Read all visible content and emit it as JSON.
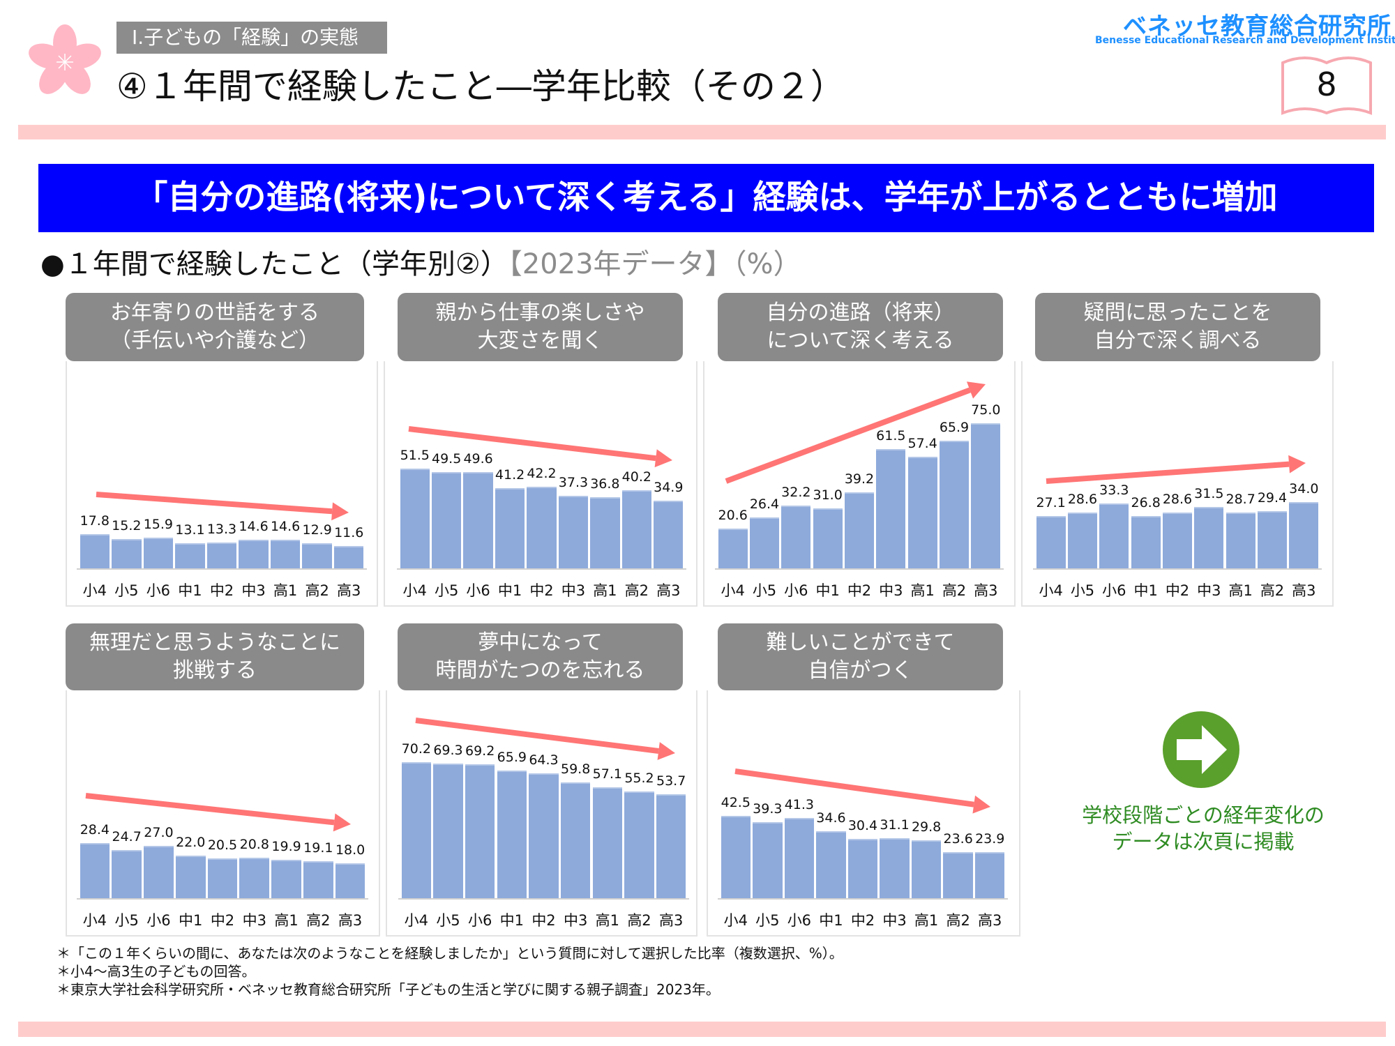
{
  "header": {
    "section_label": "Ⅰ.子どもの「経験」の実態",
    "title": "④１年間で経験したこと―学年比較（その２）",
    "logo_jp": "ベネッセ教育総合研究所",
    "logo_en": "Benesse  Educational Research and Development Institute",
    "page_number": "8"
  },
  "banner": "「自分の進路(将来)について深く考える」経験は、学年が上がるとともに増加",
  "subheading": {
    "main": "●１年間で経験したこと（学年別②）",
    "note": "【2023年データ】（%）"
  },
  "colors": {
    "bar": "#8eaadb",
    "trend_arrow": "#ff7575",
    "banner": "#0000ff",
    "header_gray": "#8a8a8a",
    "pink_band": "#ffcccc",
    "next_green": "#2e8b22"
  },
  "chart_data": [
    {
      "type": "bar",
      "title": [
        "お年寄りの世話をする",
        "（手伝いや介護など）"
      ],
      "categories": [
        "小4",
        "小5",
        "小6",
        "中1",
        "中2",
        "中3",
        "高1",
        "高2",
        "高3"
      ],
      "values": [
        17.8,
        15.2,
        15.9,
        13.1,
        13.3,
        14.6,
        14.6,
        12.9,
        11.6
      ],
      "value_labels": [
        "17.8",
        "15.2",
        "15.9",
        "13.1",
        "13.3",
        "14.6",
        "14.6",
        "12.9",
        "11.6"
      ],
      "trend": "down"
    },
    {
      "type": "bar",
      "title": [
        "親から仕事の楽しさや",
        "大変さを聞く"
      ],
      "categories": [
        "小4",
        "小5",
        "小6",
        "中1",
        "中2",
        "中3",
        "高1",
        "高2",
        "高3"
      ],
      "values": [
        51.5,
        49.5,
        49.6,
        41.2,
        42.2,
        37.3,
        36.8,
        40.2,
        34.9
      ],
      "value_labels": [
        "51.5",
        "49.5",
        "49.6",
        "41.2",
        "42.2",
        "37.3",
        "36.8",
        "40.2",
        "34.9"
      ],
      "trend": "down"
    },
    {
      "type": "bar",
      "title": [
        "自分の進路（将来）",
        "について深く考える"
      ],
      "categories": [
        "小4",
        "小5",
        "小6",
        "中1",
        "中2",
        "中3",
        "高1",
        "高2",
        "高3"
      ],
      "values": [
        20.6,
        26.4,
        32.2,
        31.0,
        39.2,
        61.5,
        57.4,
        65.9,
        75.0
      ],
      "value_labels": [
        "20.6",
        "26.4",
        "32.2",
        "31.0",
        "39.2",
        "61.5",
        "57.4",
        "65.9",
        "75.0"
      ],
      "trend": "up"
    },
    {
      "type": "bar",
      "title": [
        "疑問に思ったことを",
        "自分で深く調べる"
      ],
      "categories": [
        "小4",
        "小5",
        "小6",
        "中1",
        "中2",
        "中3",
        "高1",
        "高2",
        "高3"
      ],
      "values": [
        27.1,
        28.6,
        33.3,
        26.8,
        28.6,
        31.5,
        28.7,
        29.4,
        34.0
      ],
      "value_labels": [
        "27.1",
        "28.6",
        "33.3",
        "26.8",
        "28.6",
        "31.5",
        "28.7",
        "29.4",
        "34.0"
      ],
      "trend": "up"
    },
    {
      "type": "bar",
      "title": [
        "無理だと思うようなことに",
        "挑戦する"
      ],
      "categories": [
        "小4",
        "小5",
        "小6",
        "中1",
        "中2",
        "中3",
        "高1",
        "高2",
        "高3"
      ],
      "values": [
        28.4,
        24.7,
        27.0,
        22.0,
        20.5,
        20.8,
        19.9,
        19.1,
        18.0
      ],
      "value_labels": [
        "28.4",
        "24.7",
        "27.0",
        "22.0",
        "20.5",
        "20.8",
        "19.9",
        "19.1",
        "18.0"
      ],
      "trend": "down"
    },
    {
      "type": "bar",
      "title": [
        "夢中になって",
        "時間がたつのを忘れる"
      ],
      "categories": [
        "小4",
        "小5",
        "小6",
        "中1",
        "中2",
        "中3",
        "高1",
        "高2",
        "高3"
      ],
      "values": [
        70.2,
        69.3,
        69.2,
        65.9,
        64.3,
        59.8,
        57.1,
        55.2,
        53.7
      ],
      "value_labels": [
        "70.2",
        "69.3",
        "69.2",
        "65.9",
        "64.3",
        "59.8",
        "57.1",
        "55.2",
        "53.7"
      ],
      "trend": "down"
    },
    {
      "type": "bar",
      "title": [
        "難しいことができて",
        "自信がつく"
      ],
      "categories": [
        "小4",
        "小5",
        "小6",
        "中1",
        "中2",
        "中3",
        "高1",
        "高2",
        "高3"
      ],
      "values": [
        42.5,
        39.3,
        41.3,
        34.6,
        30.4,
        31.1,
        29.8,
        23.6,
        23.9
      ],
      "value_labels": [
        "42.5",
        "39.3",
        "41.3",
        "34.6",
        "30.4",
        "31.1",
        "29.8",
        "23.6",
        "23.9"
      ],
      "trend": "down"
    }
  ],
  "next_page_note": [
    "学校段階ごとの経年変化の",
    "データは次頁に掲載"
  ],
  "footnotes": [
    "＊「この１年くらいの間に、あなたは次のようなことを経験しましたか」という質問に対して選択した比率（複数選択、%）。",
    "＊小4～高3生の子どもの回答。",
    "＊東京大学社会科学研究所・ベネッセ教育総合研究所「子どもの生活と学びに関する親子調査」2023年。"
  ]
}
